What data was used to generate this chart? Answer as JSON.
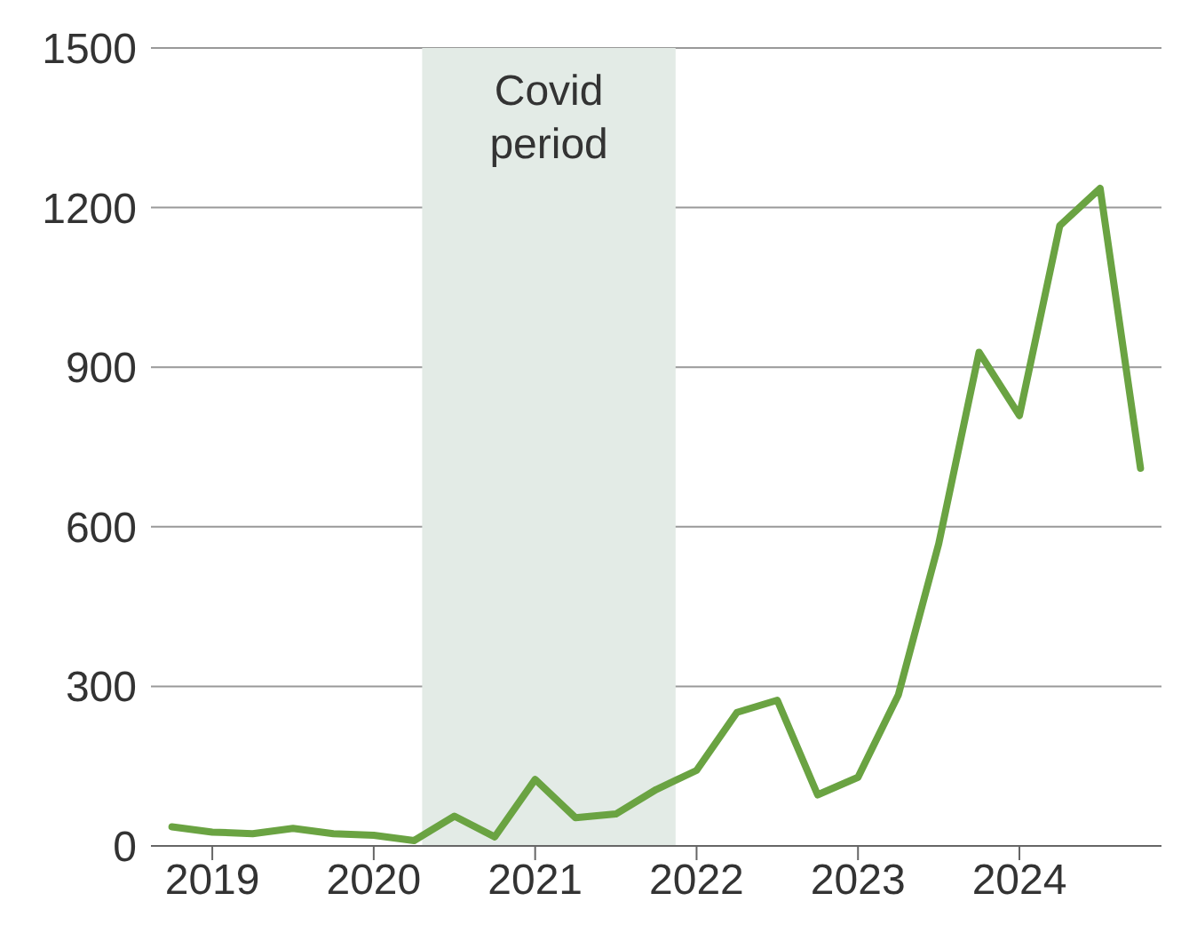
{
  "chart_data": {
    "type": "line",
    "x": [
      2018.75,
      2019,
      2019.25,
      2019.5,
      2019.75,
      2020,
      2020.25,
      2020.5,
      2020.75,
      2021,
      2021.25,
      2021.5,
      2021.75,
      2022,
      2022.25,
      2022.5,
      2022.75,
      2023,
      2023.25,
      2023.5,
      2023.75,
      2024,
      2024.25,
      2024.5,
      2024.75
    ],
    "series": [
      {
        "color": "#6aa342",
        "values": [
          36,
          26,
          23,
          33,
          23,
          20,
          10,
          56,
          17,
          125,
          53,
          60,
          106,
          142,
          251,
          274,
          96,
          129,
          284,
          568,
          928,
          809,
          1166,
          1236,
          710
        ]
      }
    ],
    "xlim": [
      2018.62,
      2024.88
    ],
    "xticks": [
      2019,
      2020,
      2021,
      2022,
      2023,
      2024
    ],
    "ylim": [
      0,
      1500
    ],
    "yticks": [
      0,
      300,
      600,
      900,
      1200,
      1500
    ],
    "grid": "y",
    "marker": "none",
    "line_style": "solid",
    "bands": [
      {
        "axis": "x",
        "from": 2020.3,
        "to": 2021.87,
        "label": "Covid period",
        "color": "#e3ebe6"
      }
    ]
  }
}
